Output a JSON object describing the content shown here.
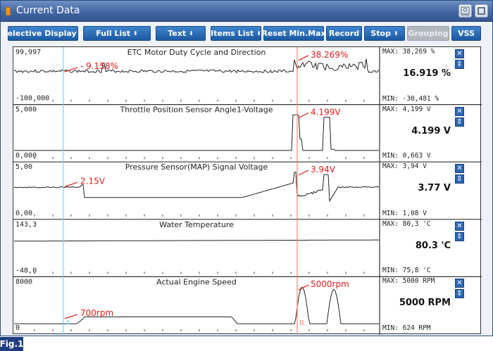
{
  "window": {
    "title": "Current Data",
    "accent": "#3e639f"
  },
  "title_buttons": [
    {
      "icon": "setup-icon",
      "label": "setup"
    },
    {
      "icon": "restore-icon",
      "label": ""
    }
  ],
  "toolbar": [
    {
      "label": "Selective Display",
      "caret": true
    },
    {
      "label": "Full List",
      "caret": true
    },
    {
      "label": "Text",
      "caret": true
    },
    {
      "label": "Items List",
      "caret": true
    },
    {
      "label": "Reset Min.Max",
      "caret": false
    },
    {
      "label": "Record",
      "caret": false
    },
    {
      "label": "Stop",
      "caret": true
    },
    {
      "label": "Grouping",
      "caret": false,
      "disabled": true
    },
    {
      "label": "VSS",
      "caret": false
    }
  ],
  "cursors": {
    "a_label": "A",
    "b_label": "B",
    "a_color": "#74d3f0",
    "b_color": "#f08a78"
  },
  "charts": [
    {
      "title": "ETC Motor Duty Cycle and Direction",
      "y_max_label": "99,997",
      "y_min_label": "-100,000",
      "max": "MAX: 38,269 %",
      "min": "MIN: -30,481 %",
      "current": "16.919 %",
      "annotation_a": "- 9.158%",
      "annotation_b": "38.269%"
    },
    {
      "title": "Throttle Position Sensor Angle1-Voltage",
      "y_max_label": "5,000",
      "y_min_label": "0,000",
      "max": "MAX: 4,199 V",
      "min": "MIN: 0,663 V",
      "current": "4.199 V",
      "annotation_a": "",
      "annotation_b": "4.199V"
    },
    {
      "title": "Pressure Sensor(MAP) Signal Voltage",
      "y_max_label": "5,00",
      "y_min_label": "0,00",
      "max": "MAX:  3,94 V",
      "min": "MIN:  1,08 V",
      "current": "3.77 V",
      "annotation_a": "2.15V",
      "annotation_b": "3.94V"
    },
    {
      "title": "Water Temperature",
      "y_max_label": "143,3",
      "y_min_label": "-48,0",
      "max": "MAX:  80,3 'C",
      "min": "MIN:  75,8 'C",
      "current": "80.3 'C",
      "annotation_a": "",
      "annotation_b": ""
    },
    {
      "title": "Actual Engine Speed",
      "y_max_label": "8000",
      "y_min_label": "0",
      "max": "MAX:  5000 RPM",
      "min": "MIN:   624 RPM",
      "current": "5000 RPM",
      "annotation_a": "700rpm",
      "annotation_b": "5000rpm"
    }
  ],
  "figure_label": "Fig.1"
}
